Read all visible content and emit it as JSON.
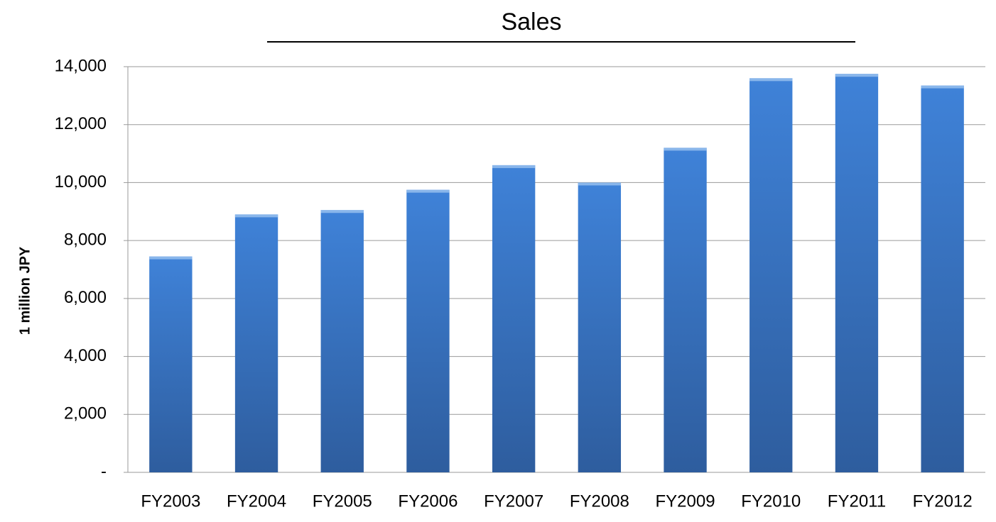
{
  "chart_data": {
    "type": "bar",
    "title": "Sales",
    "y_label": "1 million JPY",
    "categories": [
      "FY2003",
      "FY2004",
      "FY2005",
      "FY2006",
      "FY2007",
      "FY2008",
      "FY2009",
      "FY2010",
      "FY2011",
      "FY2012"
    ],
    "values": [
      7450,
      8900,
      9050,
      9750,
      10600,
      10000,
      11200,
      13600,
      13750,
      13350
    ],
    "color": "#3f82d8",
    "ylim": [
      0,
      14000
    ],
    "yticks": [
      {
        "value": 0,
        "label": "-"
      },
      {
        "value": 2000,
        "label": "2,000"
      },
      {
        "value": 4000,
        "label": "4,000"
      },
      {
        "value": 6000,
        "label": "6,000"
      },
      {
        "value": 8000,
        "label": "8,000"
      },
      {
        "value": 10000,
        "label": "10,000"
      },
      {
        "value": 12000,
        "label": "12,000"
      },
      {
        "value": 14000,
        "label": "14,000"
      }
    ],
    "grid": true
  }
}
